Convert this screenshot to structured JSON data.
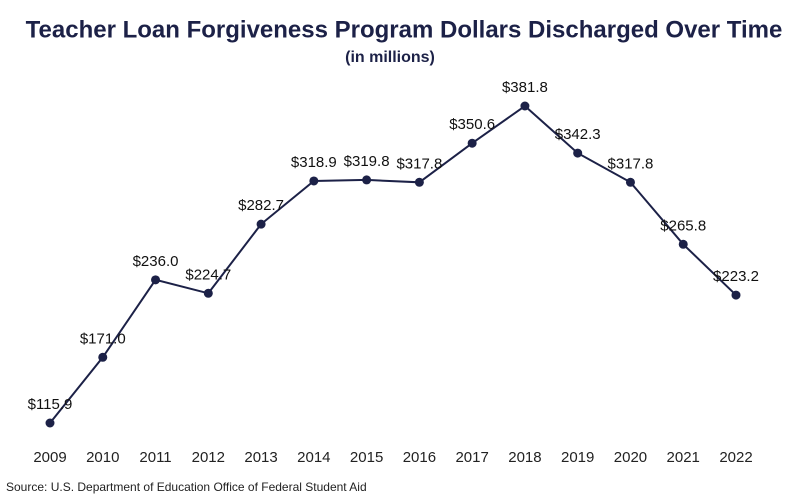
{
  "chart_data": {
    "type": "line",
    "title": "Teacher Loan Forgiveness Program Dollars Discharged Over Time",
    "subtitle": "(in millions)",
    "source": "Source: U.S. Department of Education Office of Federal Student Aid",
    "categories": [
      "2009",
      "2010",
      "2011",
      "2012",
      "2013",
      "2014",
      "2015",
      "2016",
      "2017",
      "2018",
      "2019",
      "2020",
      "2021",
      "2022"
    ],
    "values": [
      115.9,
      171.0,
      236.0,
      224.7,
      282.7,
      318.9,
      319.8,
      317.8,
      350.6,
      381.8,
      342.3,
      317.8,
      265.8,
      223.2
    ],
    "value_labels": [
      "$115.9",
      "$171.0",
      "$236.0",
      "$224.7",
      "$282.7",
      "$318.9",
      "$319.8",
      "$317.8",
      "$350.6",
      "$381.8",
      "$342.3",
      "$317.8",
      "$265.8",
      "$223.2"
    ],
    "color": "#1c2147"
  }
}
